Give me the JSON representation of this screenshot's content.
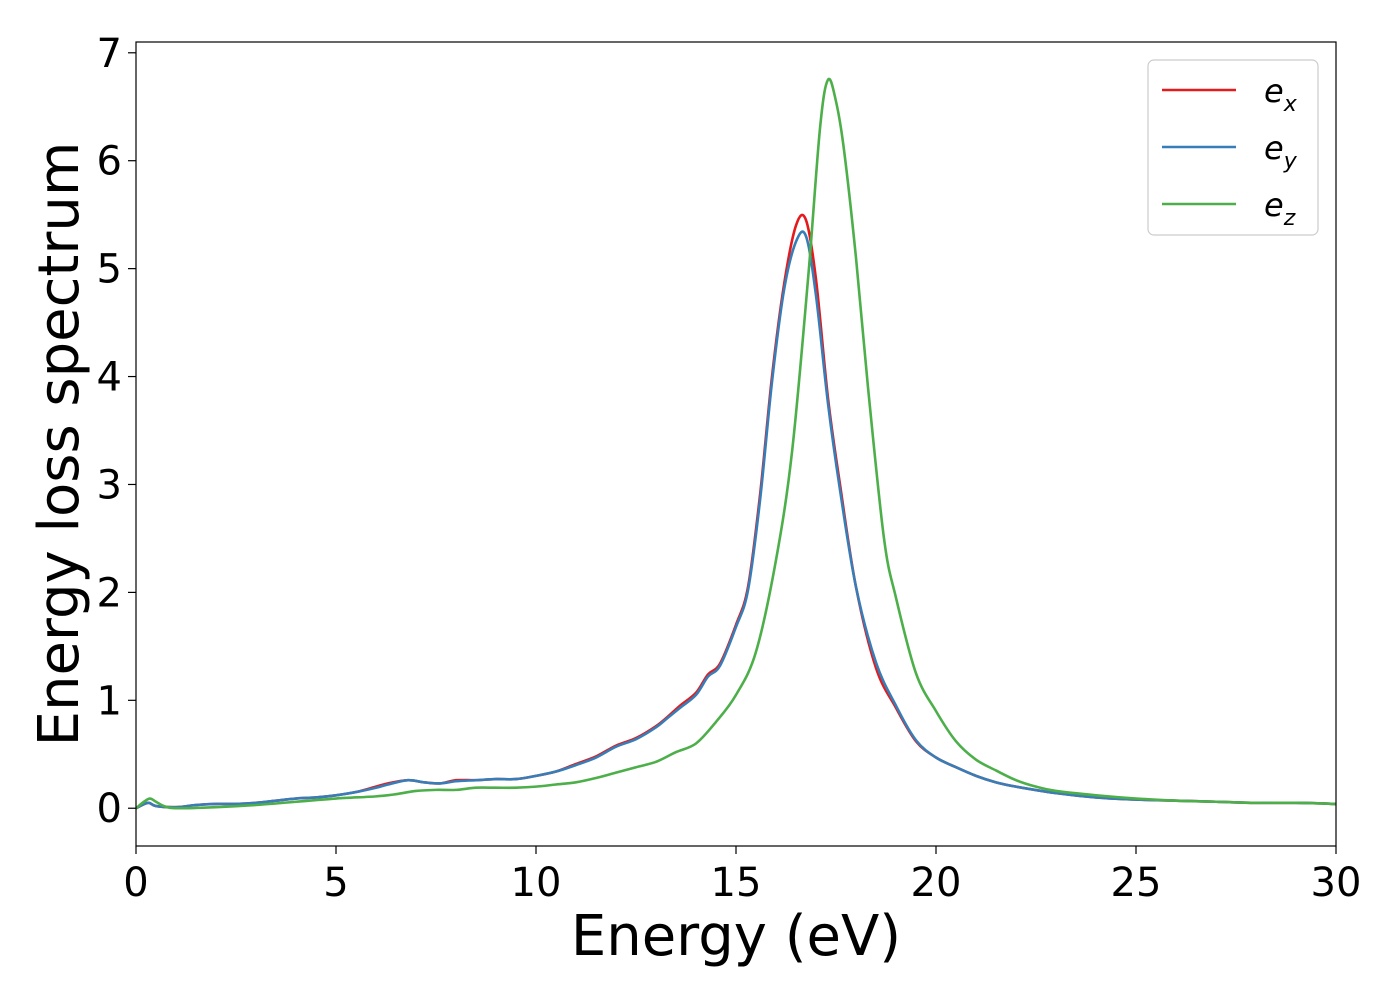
{
  "chart_data": {
    "type": "line",
    "title": "",
    "xlabel": "Energy (eV)",
    "ylabel": "Energy loss spectrum",
    "xlim": [
      0,
      30
    ],
    "ylim": [
      -0.35,
      7.1
    ],
    "xticks": [
      0,
      5,
      10,
      15,
      20,
      25,
      30
    ],
    "yticks": [
      0,
      1,
      2,
      3,
      4,
      5,
      6,
      7
    ],
    "grid": false,
    "legend_position": "top-right",
    "series": [
      {
        "name": "e_x",
        "label_base": "e",
        "label_sub": "x",
        "color": "#e41a1c",
        "x": [
          0,
          0.3,
          0.5,
          1,
          1.5,
          2,
          2.5,
          3,
          3.5,
          4,
          4.5,
          5,
          5.5,
          6,
          6.3,
          6.8,
          7.2,
          7.6,
          8,
          8.5,
          9,
          9.5,
          10,
          10.5,
          11,
          11.5,
          12,
          12.5,
          13,
          13.3,
          13.6,
          14,
          14.3,
          14.6,
          15,
          15.3,
          15.6,
          15.9,
          16.2,
          16.5,
          16.75,
          17,
          17.3,
          17.6,
          18,
          18.5,
          19,
          19.5,
          20,
          20.5,
          21,
          21.5,
          22,
          23,
          24,
          25,
          26,
          27,
          28,
          29,
          30
        ],
        "values": [
          0,
          0.05,
          0.02,
          0.01,
          0.03,
          0.04,
          0.04,
          0.05,
          0.07,
          0.09,
          0.1,
          0.12,
          0.15,
          0.2,
          0.23,
          0.26,
          0.24,
          0.23,
          0.26,
          0.26,
          0.27,
          0.27,
          0.3,
          0.34,
          0.41,
          0.48,
          0.58,
          0.65,
          0.76,
          0.85,
          0.95,
          1.07,
          1.24,
          1.34,
          1.7,
          2.05,
          2.9,
          4.0,
          4.85,
          5.4,
          5.45,
          4.9,
          3.8,
          3.0,
          2.05,
          1.3,
          0.93,
          0.62,
          0.47,
          0.38,
          0.3,
          0.24,
          0.2,
          0.14,
          0.1,
          0.08,
          0.07,
          0.06,
          0.05,
          0.05,
          0.04
        ]
      },
      {
        "name": "e_y",
        "label_base": "e",
        "label_sub": "y",
        "color": "#377eb8",
        "x": [
          0,
          0.3,
          0.5,
          1,
          1.5,
          2,
          2.5,
          3,
          3.5,
          4,
          4.5,
          5,
          5.5,
          6,
          6.3,
          6.8,
          7.2,
          7.6,
          8,
          8.5,
          9,
          9.5,
          10,
          10.5,
          11,
          11.5,
          12,
          12.5,
          13,
          13.3,
          13.6,
          14,
          14.3,
          14.6,
          15,
          15.3,
          15.6,
          15.9,
          16.2,
          16.5,
          16.75,
          17,
          17.3,
          17.6,
          18,
          18.5,
          19,
          19.5,
          20,
          20.5,
          21,
          21.5,
          22,
          23,
          24,
          25,
          26,
          27,
          28,
          29,
          30
        ],
        "values": [
          0,
          0.05,
          0.02,
          0.01,
          0.03,
          0.04,
          0.04,
          0.05,
          0.07,
          0.09,
          0.1,
          0.12,
          0.15,
          0.19,
          0.22,
          0.26,
          0.24,
          0.23,
          0.25,
          0.26,
          0.27,
          0.27,
          0.3,
          0.34,
          0.4,
          0.47,
          0.57,
          0.64,
          0.75,
          0.84,
          0.93,
          1.05,
          1.22,
          1.32,
          1.68,
          2.02,
          2.85,
          3.95,
          4.8,
          5.25,
          5.3,
          4.75,
          3.75,
          2.95,
          2.05,
          1.35,
          0.95,
          0.63,
          0.47,
          0.38,
          0.3,
          0.24,
          0.2,
          0.14,
          0.1,
          0.08,
          0.07,
          0.06,
          0.05,
          0.05,
          0.04
        ]
      },
      {
        "name": "e_z",
        "label_base": "e",
        "label_sub": "z",
        "color": "#4daf4a",
        "x": [
          0,
          0.2,
          0.35,
          0.5,
          0.7,
          1,
          2,
          3,
          4,
          5,
          6,
          6.5,
          7,
          7.5,
          8,
          8.5,
          9,
          9.5,
          10,
          10.5,
          11,
          11.5,
          12,
          12.5,
          13,
          13.5,
          14,
          14.5,
          15,
          15.5,
          16,
          16.4,
          16.8,
          17.1,
          17.3,
          17.5,
          17.7,
          18,
          18.3,
          18.7,
          19,
          19.5,
          20,
          20.5,
          21,
          21.5,
          22,
          22.5,
          23,
          24,
          25,
          26,
          27,
          28,
          29,
          30
        ],
        "values": [
          0,
          0.06,
          0.09,
          0.06,
          0.02,
          0.0,
          0.01,
          0.03,
          0.06,
          0.09,
          0.11,
          0.13,
          0.16,
          0.17,
          0.17,
          0.19,
          0.19,
          0.19,
          0.2,
          0.22,
          0.24,
          0.28,
          0.33,
          0.38,
          0.43,
          0.52,
          0.6,
          0.8,
          1.05,
          1.45,
          2.3,
          3.3,
          4.9,
          6.3,
          6.75,
          6.55,
          6.1,
          5.1,
          3.9,
          2.5,
          1.95,
          1.25,
          0.9,
          0.62,
          0.45,
          0.35,
          0.26,
          0.2,
          0.16,
          0.12,
          0.09,
          0.07,
          0.06,
          0.05,
          0.05,
          0.04
        ]
      }
    ]
  }
}
